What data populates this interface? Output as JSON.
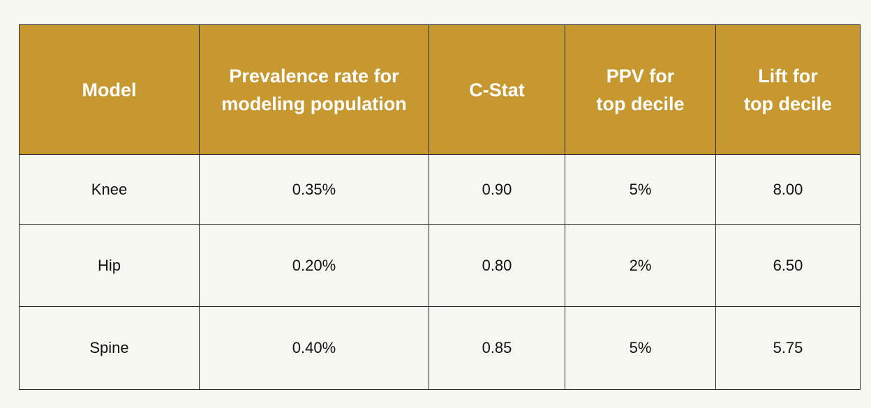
{
  "table": {
    "headers": [
      "Model",
      "Prevalence rate for\nmodeling population",
      "C-Stat",
      "PPV for\ntop decile",
      "Lift for\ntop decile"
    ],
    "rows": [
      [
        "Knee",
        "0.35%",
        "0.90",
        "5%",
        "8.00"
      ],
      [
        "Hip",
        "0.20%",
        "0.80",
        "2%",
        "6.50"
      ],
      [
        "Spine",
        "0.40%",
        "0.85",
        "5%",
        "5.75"
      ]
    ]
  },
  "colors": {
    "header_bg": "#c6982f",
    "header_text": "#ffffff",
    "body_bg": "#f7f7f2",
    "border": "#2b2b2b"
  }
}
